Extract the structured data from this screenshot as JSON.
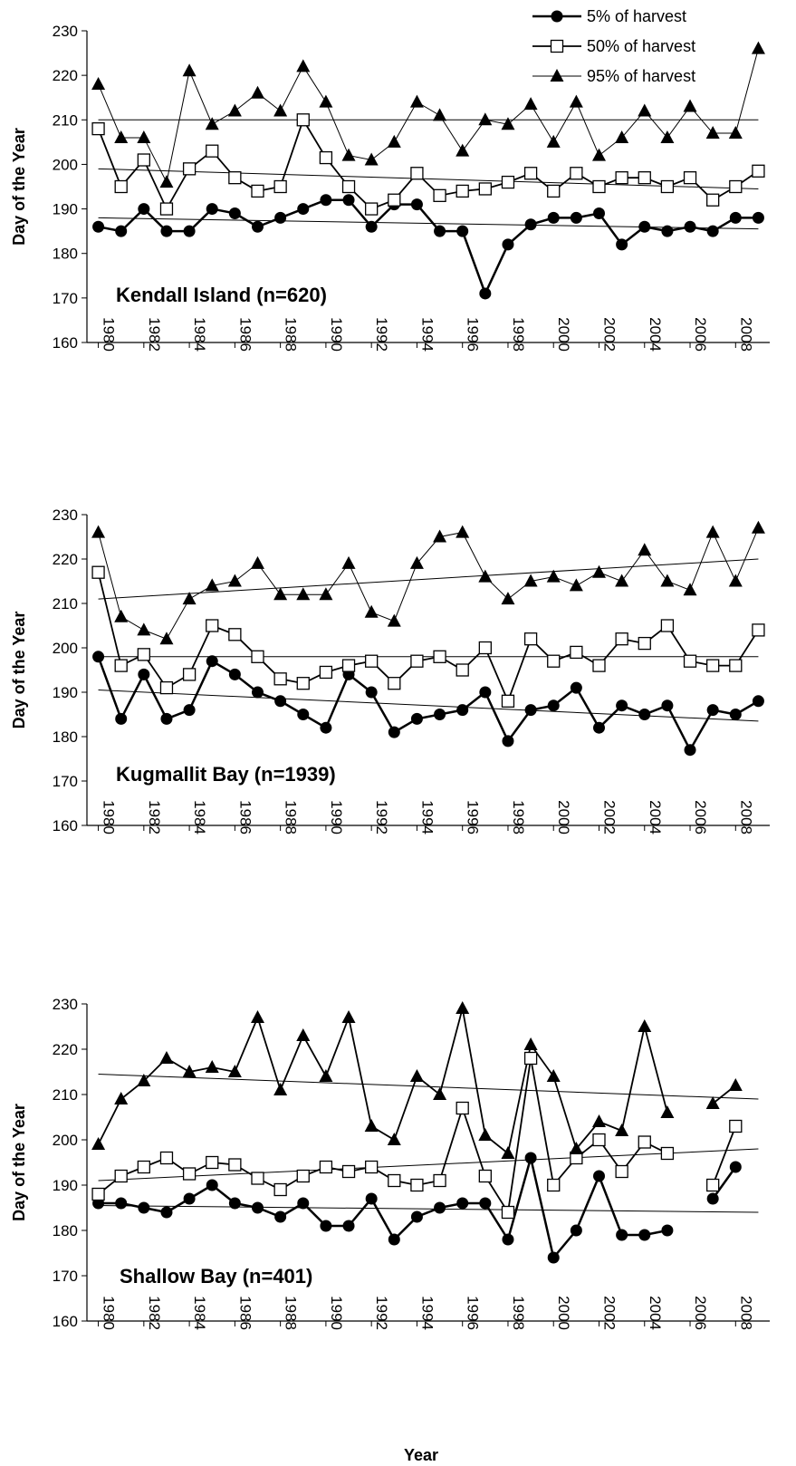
{
  "chart_data": [
    {
      "type": "line",
      "annotation": "Kendall Island (n=620)",
      "ylabel": "Day of the Year",
      "legend": "upper right",
      "x": [
        1980,
        1981,
        1982,
        1983,
        1984,
        1985,
        1986,
        1987,
        1988,
        1989,
        1990,
        1991,
        1992,
        1993,
        1994,
        1995,
        1996,
        1997,
        1998,
        1999,
        2000,
        2001,
        2002,
        2003,
        2004,
        2005,
        2006,
        2007,
        2008,
        2009
      ],
      "xlim": [
        1979.5,
        2009.5
      ],
      "xticks": [
        1980,
        1982,
        1984,
        1986,
        1988,
        1990,
        1992,
        1994,
        1996,
        1998,
        2000,
        2002,
        2004,
        2006,
        2008
      ],
      "ylim": [
        160,
        230
      ],
      "yticks": [
        160,
        170,
        180,
        190,
        200,
        210,
        220,
        230
      ],
      "series": [
        {
          "name": "5% of harvest",
          "color": "#000000",
          "marker": "circle",
          "line_width": 2.5,
          "values": [
            186,
            185,
            190,
            185,
            185,
            190,
            189,
            186,
            188,
            190,
            192,
            192,
            186,
            191,
            191,
            185,
            185,
            171,
            182,
            186.5,
            188,
            188,
            189,
            182,
            186,
            185,
            186,
            185,
            188,
            188
          ]
        },
        {
          "name": "50% of harvest",
          "color": "#000000",
          "marker": "square",
          "line_width": 1.8,
          "values": [
            208,
            195,
            201,
            190,
            199,
            203,
            197,
            194,
            195,
            210,
            201.5,
            195,
            190,
            192,
            198,
            193,
            194,
            194.5,
            196,
            198,
            194,
            198,
            195,
            197,
            197,
            195,
            197,
            192,
            195,
            198.5
          ]
        },
        {
          "name": "95% of harvest",
          "color": "#000000",
          "marker": "triangle",
          "line_width": 1,
          "values": [
            218,
            206,
            206,
            196,
            221,
            209,
            212,
            216,
            212,
            222,
            214,
            202,
            201,
            205,
            214,
            211,
            203,
            210,
            209,
            213.5,
            205,
            214,
            202,
            206,
            212,
            206,
            213,
            207,
            207,
            226
          ]
        }
      ],
      "trend_lines": [
        {
          "x": [
            1980,
            2009
          ],
          "values": [
            188,
            185.5
          ]
        },
        {
          "x": [
            1980,
            2009
          ],
          "values": [
            199,
            194.5
          ]
        },
        {
          "x": [
            1980,
            2009
          ],
          "values": [
            210,
            210
          ]
        }
      ]
    },
    {
      "type": "line",
      "annotation": "Kugmallit Bay (n=1939)",
      "ylabel": "Day of the Year",
      "x": [
        1980,
        1981,
        1982,
        1983,
        1984,
        1985,
        1986,
        1987,
        1988,
        1989,
        1990,
        1991,
        1992,
        1993,
        1994,
        1995,
        1996,
        1997,
        1998,
        1999,
        2000,
        2001,
        2002,
        2003,
        2004,
        2005,
        2006,
        2007,
        2008,
        2009
      ],
      "xlim": [
        1979.5,
        2009.5
      ],
      "xticks": [
        1980,
        1982,
        1984,
        1986,
        1988,
        1990,
        1992,
        1994,
        1996,
        1998,
        2000,
        2002,
        2004,
        2006,
        2008
      ],
      "ylim": [
        160,
        230
      ],
      "yticks": [
        160,
        170,
        180,
        190,
        200,
        210,
        220,
        230
      ],
      "series": [
        {
          "name": "5% of harvest",
          "color": "#000000",
          "marker": "circle",
          "line_width": 2.5,
          "values": [
            198,
            184,
            194,
            184,
            186,
            197,
            194,
            190,
            188,
            185,
            182,
            194,
            190,
            181,
            184,
            185,
            186,
            190,
            179,
            186,
            187,
            191,
            182,
            187,
            185,
            187,
            177,
            186,
            185,
            188
          ]
        },
        {
          "name": "50% of harvest",
          "color": "#000000",
          "marker": "square",
          "line_width": 1.8,
          "values": [
            217,
            196,
            198.5,
            191,
            194,
            205,
            203,
            198,
            193,
            192,
            194.5,
            196,
            197,
            192,
            197,
            198,
            195,
            200,
            188,
            202,
            197,
            199,
            196,
            202,
            201,
            205,
            197,
            196,
            196,
            204
          ]
        },
        {
          "name": "95% of harvest",
          "color": "#000000",
          "marker": "triangle",
          "line_width": 1,
          "values": [
            226,
            207,
            204,
            202,
            211,
            214,
            215,
            219,
            212,
            212,
            212,
            219,
            208,
            206,
            219,
            225,
            226,
            216,
            211,
            215,
            216,
            214,
            217,
            215,
            222,
            215,
            213,
            226,
            215,
            227
          ]
        }
      ],
      "trend_lines": [
        {
          "x": [
            1980,
            2009
          ],
          "values": [
            190.5,
            183.5
          ]
        },
        {
          "x": [
            1980,
            2009
          ],
          "values": [
            198,
            198
          ]
        },
        {
          "x": [
            1980,
            2009
          ],
          "values": [
            211,
            220
          ]
        }
      ]
    },
    {
      "type": "line",
      "annotation": "Shallow Bay (n=401)",
      "ylabel": "Day of the Year",
      "xlabel": "Year",
      "x": [
        1980,
        1981,
        1982,
        1983,
        1984,
        1985,
        1986,
        1987,
        1988,
        1989,
        1990,
        1991,
        1992,
        1993,
        1994,
        1995,
        1996,
        1997,
        1998,
        1999,
        2000,
        2001,
        2002,
        2003,
        2004,
        2005,
        2006,
        2007,
        2008
      ],
      "xlim": [
        1979.5,
        2009.5
      ],
      "xticks": [
        1980,
        1982,
        1984,
        1986,
        1988,
        1990,
        1992,
        1994,
        1996,
        1998,
        2000,
        2002,
        2004,
        2006,
        2008
      ],
      "ylim": [
        160,
        230
      ],
      "yticks": [
        160,
        170,
        180,
        190,
        200,
        210,
        220,
        230
      ],
      "series": [
        {
          "name": "5% of harvest",
          "color": "#000000",
          "marker": "circle",
          "line_width": 2.5,
          "values": [
            186,
            186,
            185,
            184,
            187,
            190,
            186,
            185,
            183,
            186,
            181,
            181,
            187,
            178,
            183,
            185,
            186,
            186,
            178,
            196,
            174,
            180,
            192,
            179,
            179,
            180,
            null,
            187,
            194
          ]
        },
        {
          "name": "50% of harvest",
          "color": "#000000",
          "marker": "square",
          "line_width": 1.8,
          "values": [
            188,
            192,
            194,
            196,
            192.5,
            195,
            194.5,
            191.5,
            189,
            192,
            194,
            193,
            194,
            191,
            190,
            191,
            207,
            192,
            184,
            218,
            190,
            196,
            200,
            193,
            199.5,
            197,
            null,
            190,
            203
          ]
        },
        {
          "name": "95% of harvest",
          "color": "#000000",
          "marker": "triangle",
          "line_width": 1.8,
          "values": [
            199,
            209,
            213,
            218,
            215,
            216,
            215,
            227,
            211,
            223,
            214,
            227,
            203,
            200,
            214,
            210,
            229,
            201,
            197,
            221,
            214,
            198,
            204,
            202,
            225,
            206,
            null,
            208,
            212
          ]
        }
      ],
      "trend_lines": [
        {
          "x": [
            1980,
            2009
          ],
          "values": [
            185.5,
            184
          ]
        },
        {
          "x": [
            1980,
            2009
          ],
          "values": [
            191,
            198
          ]
        },
        {
          "x": [
            1980,
            2009
          ],
          "values": [
            214.5,
            209
          ]
        }
      ]
    }
  ]
}
